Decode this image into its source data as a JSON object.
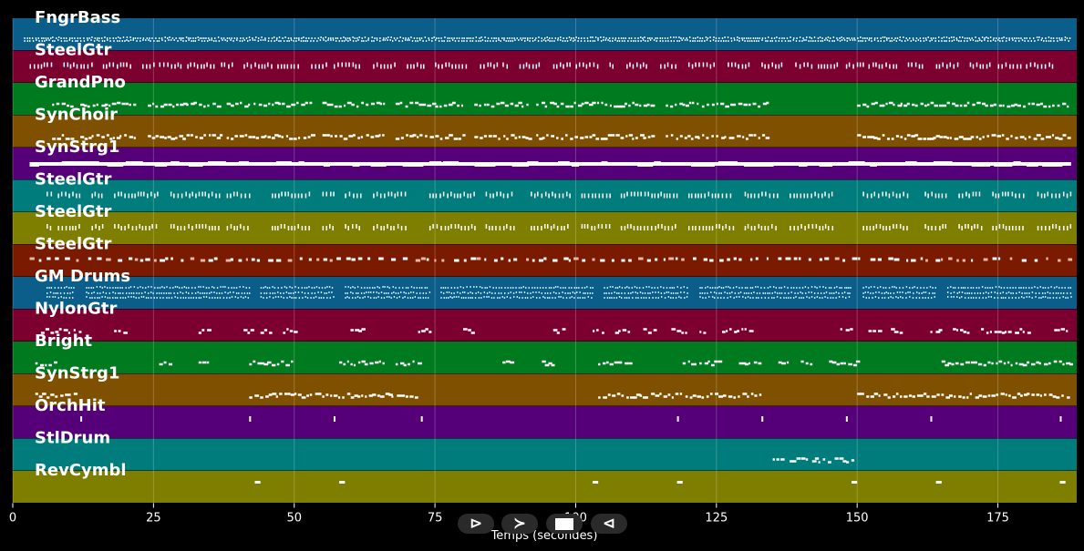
{
  "chart_data": {
    "type": "piano-roll",
    "title": "",
    "xlabel": "Temps (secondes)",
    "ylabel": "",
    "xlim": [
      0,
      189
    ],
    "x_ticks": [
      0,
      25,
      50,
      75,
      100,
      125,
      150,
      175
    ],
    "grid": true,
    "tracks": [
      {
        "name": "FngrBass",
        "color": "#0b5d8a",
        "style": "dense",
        "segments": [
          [
            2,
            188
          ]
        ],
        "level": 0.25
      },
      {
        "name": "SteelGtr",
        "color": "#7b0030",
        "style": "dashes",
        "segments": [
          [
            3,
            7
          ],
          [
            9,
            14
          ],
          [
            16,
            21
          ],
          [
            23,
            25
          ],
          [
            26,
            30
          ],
          [
            31,
            36
          ],
          [
            37,
            39
          ],
          [
            41,
            46
          ],
          [
            47,
            51
          ],
          [
            53,
            56
          ],
          [
            57,
            62
          ],
          [
            64,
            68
          ],
          [
            70,
            73
          ],
          [
            75,
            81
          ],
          [
            83,
            86
          ],
          [
            87,
            88
          ],
          [
            90,
            94
          ],
          [
            96,
            99
          ],
          [
            100,
            104
          ],
          [
            106,
            107
          ],
          [
            109,
            113
          ],
          [
            115,
            118
          ],
          [
            120,
            125
          ],
          [
            127,
            131
          ],
          [
            133,
            137
          ],
          [
            139,
            142
          ],
          [
            143,
            147
          ],
          [
            148,
            151
          ],
          [
            152,
            157
          ],
          [
            159,
            162
          ],
          [
            164,
            168
          ],
          [
            170,
            174
          ],
          [
            175,
            179
          ],
          [
            180,
            185
          ]
        ],
        "level": 0.55
      },
      {
        "name": "GrandPno",
        "color": "#007a1f",
        "style": "melody",
        "segments": [
          [
            7,
            11
          ],
          [
            12,
            22
          ],
          [
            24,
            37
          ],
          [
            38,
            53
          ],
          [
            55,
            66
          ],
          [
            68,
            80
          ],
          [
            82,
            92
          ],
          [
            93,
            114
          ],
          [
            116,
            134
          ],
          [
            150,
            188
          ]
        ],
        "level": 0.5
      },
      {
        "name": "SynChoir",
        "color": "#7f5000",
        "style": "melody",
        "segments": [
          [
            7,
            11
          ],
          [
            12,
            22
          ],
          [
            24,
            37
          ],
          [
            38,
            53
          ],
          [
            55,
            66
          ],
          [
            68,
            80
          ],
          [
            82,
            92
          ],
          [
            93,
            114
          ],
          [
            116,
            134
          ],
          [
            150,
            188
          ]
        ],
        "level": 0.5
      },
      {
        "name": "SynStrg1",
        "color": "#550078",
        "style": "bar",
        "segments": [
          [
            3,
            188
          ]
        ],
        "level": 0.55
      },
      {
        "name": "SteelGtr",
        "color": "#007c7c",
        "style": "dashes",
        "segments": [
          [
            6,
            7
          ],
          [
            8,
            12
          ],
          [
            14,
            16
          ],
          [
            18,
            26
          ],
          [
            28,
            37
          ],
          [
            38,
            42
          ],
          [
            46,
            53
          ],
          [
            55,
            57
          ],
          [
            59,
            62
          ],
          [
            64,
            70
          ],
          [
            74,
            82
          ],
          [
            84,
            89
          ],
          [
            92,
            99
          ],
          [
            101,
            106
          ],
          [
            108,
            118
          ],
          [
            120,
            128
          ],
          [
            130,
            136
          ],
          [
            138,
            146
          ],
          [
            151,
            159
          ],
          [
            162,
            166
          ],
          [
            168,
            172
          ],
          [
            174,
            180
          ],
          [
            182,
            188
          ]
        ],
        "level": 0.5
      },
      {
        "name": "SteelGtr",
        "color": "#7e7e00",
        "style": "dashes",
        "segments": [
          [
            6,
            7
          ],
          [
            8,
            12
          ],
          [
            14,
            16
          ],
          [
            18,
            26
          ],
          [
            28,
            37
          ],
          [
            38,
            42
          ],
          [
            46,
            53
          ],
          [
            55,
            57
          ],
          [
            59,
            62
          ],
          [
            64,
            70
          ],
          [
            74,
            82
          ],
          [
            84,
            89
          ],
          [
            92,
            99
          ],
          [
            101,
            106
          ],
          [
            108,
            118
          ],
          [
            120,
            128
          ],
          [
            130,
            136
          ],
          [
            138,
            146
          ],
          [
            151,
            159
          ],
          [
            162,
            166
          ],
          [
            168,
            172
          ],
          [
            174,
            180
          ],
          [
            182,
            188
          ]
        ],
        "level": 0.5
      },
      {
        "name": "SteelGtr",
        "color": "#7a1a00",
        "style": "blocks",
        "segments": [
          [
            3,
            188
          ]
        ],
        "level": 0.45
      },
      {
        "name": "GM Drums",
        "color": "#0b5d8a",
        "style": "drums",
        "segments": [
          [
            6,
            11
          ],
          [
            13,
            42
          ],
          [
            44,
            57
          ],
          [
            59,
            74
          ],
          [
            76,
            103
          ],
          [
            105,
            120
          ],
          [
            122,
            149
          ],
          [
            151,
            164
          ],
          [
            166,
            188
          ]
        ],
        "level": 0.5
      },
      {
        "name": "NylonGtr",
        "color": "#7b0030",
        "style": "sparse",
        "segments": [
          [
            5,
            12
          ],
          [
            18,
            20
          ],
          [
            33,
            35
          ],
          [
            41,
            43
          ],
          [
            44,
            46
          ],
          [
            48,
            50
          ],
          [
            60,
            62
          ],
          [
            72,
            74
          ],
          [
            80,
            82
          ],
          [
            96,
            98
          ],
          [
            103,
            105
          ],
          [
            107,
            110
          ],
          [
            112,
            114
          ],
          [
            117,
            120
          ],
          [
            122,
            123
          ],
          [
            126,
            131
          ],
          [
            147,
            149
          ],
          [
            152,
            154
          ],
          [
            156,
            158
          ],
          [
            163,
            165
          ],
          [
            167,
            170
          ],
          [
            172,
            177
          ],
          [
            178,
            181
          ],
          [
            185,
            188
          ]
        ],
        "level": 0.5
      },
      {
        "name": "Bright",
        "color": "#007a1f",
        "style": "sparse",
        "segments": [
          [
            4,
            8
          ],
          [
            26,
            28
          ],
          [
            33,
            35
          ],
          [
            42,
            50
          ],
          [
            58,
            66
          ],
          [
            68,
            72
          ],
          [
            87,
            89
          ],
          [
            94,
            96
          ],
          [
            104,
            110
          ],
          [
            119,
            126
          ],
          [
            129,
            133
          ],
          [
            136,
            138
          ],
          [
            140,
            142
          ],
          [
            145,
            150
          ],
          [
            165,
            188
          ]
        ],
        "level": 0.5
      },
      {
        "name": "SynStrg1",
        "color": "#7f5000",
        "style": "melody",
        "segments": [
          [
            4,
            11
          ],
          [
            42,
            72
          ],
          [
            104,
            133
          ],
          [
            150,
            188
          ]
        ],
        "level": 0.5
      },
      {
        "name": "OrchHit",
        "color": "#550078",
        "style": "hits",
        "segments": [
          [
            12,
            12.3
          ],
          [
            42,
            42.3
          ],
          [
            57,
            57.3
          ],
          [
            72.5,
            72.8
          ],
          [
            118,
            118.3
          ],
          [
            133,
            133.3
          ],
          [
            148,
            148.3
          ],
          [
            163,
            163.3
          ],
          [
            186,
            186.3
          ]
        ],
        "level": 0.4
      },
      {
        "name": "StlDrum",
        "color": "#007c7c",
        "style": "sparse",
        "segments": [
          [
            135,
            137
          ],
          [
            138,
            141
          ],
          [
            142,
            145
          ],
          [
            146,
            149
          ]
        ],
        "level": 0.5
      },
      {
        "name": "RevCymbl",
        "color": "#7e7e00",
        "style": "hits",
        "segments": [
          [
            43,
            44
          ],
          [
            58,
            59
          ],
          [
            103,
            104
          ],
          [
            118,
            119
          ],
          [
            149,
            150
          ],
          [
            164,
            165
          ],
          [
            186,
            187
          ]
        ],
        "level": 0.45
      }
    ]
  },
  "transport": {
    "play_icon": "play-outline-icon",
    "play_glyph": "⊳",
    "forward_icon": "forward-icon",
    "forward_glyph": "≻",
    "stop_icon": "stop-icon",
    "back_icon": "back-icon",
    "back_glyph": "⊲"
  }
}
